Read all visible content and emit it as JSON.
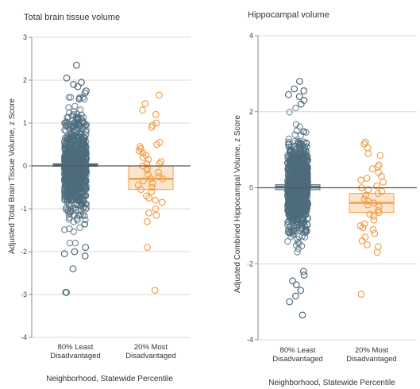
{
  "colors": {
    "least": "#4e6b7c",
    "most": "#f0a04b",
    "grid": "#d9d9d9",
    "zero": "#555555"
  },
  "chart_data": [
    {
      "type": "scatter",
      "title": "Total brain tissue volume",
      "ylabel": "Adjusted Total Brain Tissue Volume, z Score",
      "xlabel": "Neighborhood, Statewide Percentile",
      "ylim": [
        -4,
        3
      ],
      "yticks": [
        3,
        2,
        1,
        0,
        -1,
        -2,
        -3,
        -4
      ],
      "grid": true,
      "categories": [
        "80% Least Disadvantaged",
        "20% Most Disadvantaged"
      ],
      "category_lines": [
        [
          "80% Least",
          "Disadvantaged"
        ],
        [
          "20% Most",
          "Disadvantaged"
        ]
      ],
      "series": [
        {
          "category": "80% Least Disadvantaged",
          "median": 0.03,
          "q1": -0.01,
          "q3": 0.05,
          "n_dense": 900,
          "dense_min": -1.8,
          "dense_max": 1.6,
          "values": [
            2.35,
            2.05,
            1.95,
            1.9,
            1.85,
            1.75,
            1.7,
            -1.9,
            -2.0,
            -2.05,
            -2.1,
            -2.4,
            -2.95,
            -2.95
          ]
        },
        {
          "category": "20% Most Disadvantaged",
          "median": -0.3,
          "q1": -0.55,
          "q3": 0.0,
          "values": [
            1.65,
            1.45,
            1.3,
            1.2,
            1.0,
            0.95,
            0.9,
            0.55,
            0.5,
            0.45,
            0.4,
            0.35,
            0.3,
            0.25,
            0.2,
            0.15,
            0.1,
            0.05,
            0.05,
            0.0,
            -0.05,
            -0.1,
            -0.15,
            -0.2,
            -0.25,
            -0.3,
            -0.3,
            -0.35,
            -0.4,
            -0.45,
            -0.5,
            -0.55,
            -0.6,
            -0.7,
            -0.75,
            -0.8,
            -0.85,
            -1.0,
            -1.1,
            -1.15,
            -1.3,
            -1.9,
            -2.9
          ]
        }
      ]
    },
    {
      "type": "scatter",
      "title": "Hippocampal volume",
      "ylabel": "Adjusted Combined Hippocampal Volume, z Score",
      "xlabel": "Neighborhood, Statewide Percentile",
      "ylim": [
        -4,
        4
      ],
      "yticks": [
        4,
        2,
        0,
        -2,
        -4
      ],
      "grid": true,
      "categories": [
        "80% Least Disadvantaged",
        "20% Most Disadvantaged"
      ],
      "category_lines": [
        [
          "80% Least",
          "Disadvantaged"
        ],
        [
          "20% Most",
          "Disadvantaged"
        ]
      ],
      "series": [
        {
          "category": "80% Least Disadvantaged",
          "median": 0.02,
          "q1": -0.05,
          "q3": 0.08,
          "n_dense": 1000,
          "dense_min": -2.0,
          "dense_max": 2.1,
          "values": [
            2.8,
            2.6,
            2.55,
            2.45,
            2.4,
            2.3,
            2.2,
            -2.2,
            -2.3,
            -2.45,
            -2.55,
            -2.7,
            -2.85,
            -3.0,
            -3.35
          ]
        },
        {
          "category": "20% Most Disadvantaged",
          "median": -0.4,
          "q1": -0.65,
          "q3": -0.15,
          "values": [
            1.2,
            1.15,
            1.05,
            0.9,
            0.85,
            0.6,
            0.55,
            0.5,
            0.4,
            0.3,
            0.25,
            0.2,
            0.15,
            0.05,
            0.0,
            -0.05,
            -0.1,
            -0.15,
            -0.2,
            -0.3,
            -0.35,
            -0.4,
            -0.45,
            -0.5,
            -0.6,
            -0.65,
            -0.7,
            -0.75,
            -0.85,
            -0.95,
            -1.0,
            -1.05,
            -1.1,
            -1.2,
            -1.3,
            -1.4,
            -1.5,
            -1.55,
            -1.7,
            -2.8
          ]
        }
      ]
    }
  ]
}
